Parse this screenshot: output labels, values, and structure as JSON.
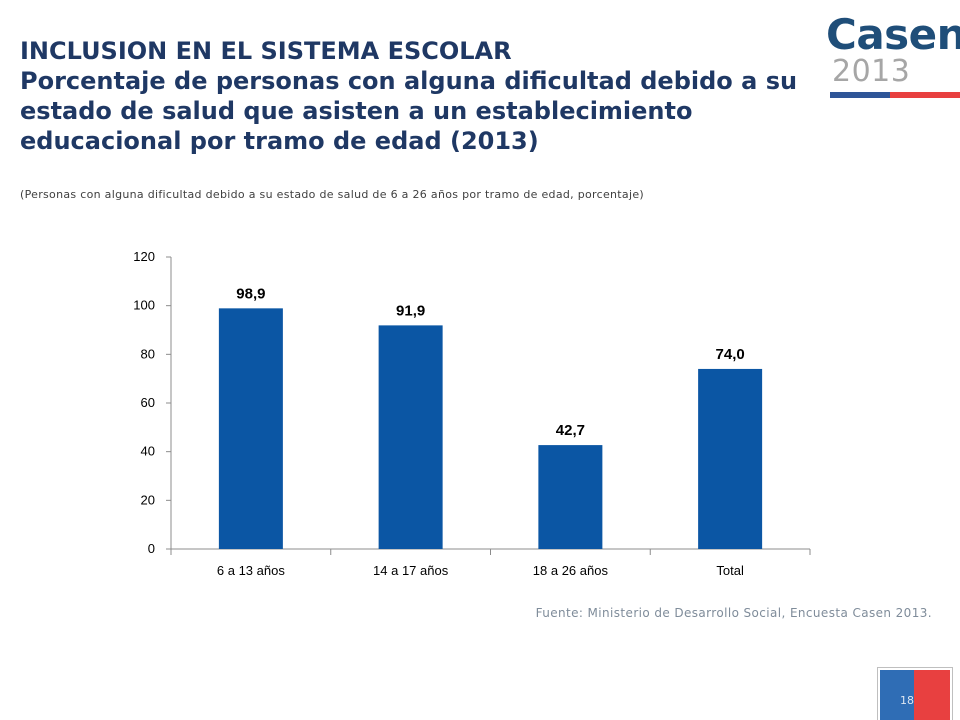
{
  "header": {
    "title_line1": "INCLUSION EN EL SISTEMA ESCOLAR",
    "title_line2": "Porcentaje de personas con alguna dificultad debido a su estado de salud que asisten a un establecimiento educacional por tramo de edad (2013)",
    "subtitle": "(Personas con alguna dificultad debido a su estado de salud de 6 a 26 años por tramo de edad, porcentaje)"
  },
  "logo": {
    "word": "Casen",
    "year": "2013"
  },
  "chart_data": {
    "type": "bar",
    "categories": [
      "6 a 13 años",
      "14 a 17 años",
      "18 a 26 años",
      "Total"
    ],
    "values": [
      98.9,
      91.9,
      42.7,
      74.0
    ],
    "value_labels": [
      "98,9",
      "91,9",
      "42,7",
      "74,0"
    ],
    "title": "",
    "xlabel": "",
    "ylabel": "",
    "ylim": [
      0,
      120
    ],
    "yticks": [
      0,
      20,
      40,
      60,
      80,
      100,
      120
    ],
    "grid": false,
    "legend": "none",
    "bar_color": "#0B56A4"
  },
  "footer": {
    "source": "Fuente: Ministerio de Desarrollo Social, Encuesta Casen 2013.",
    "page_number": "18"
  },
  "colors": {
    "title": "#1F3864",
    "brand_blue": "#2F5597",
    "brand_red": "#E84040"
  }
}
